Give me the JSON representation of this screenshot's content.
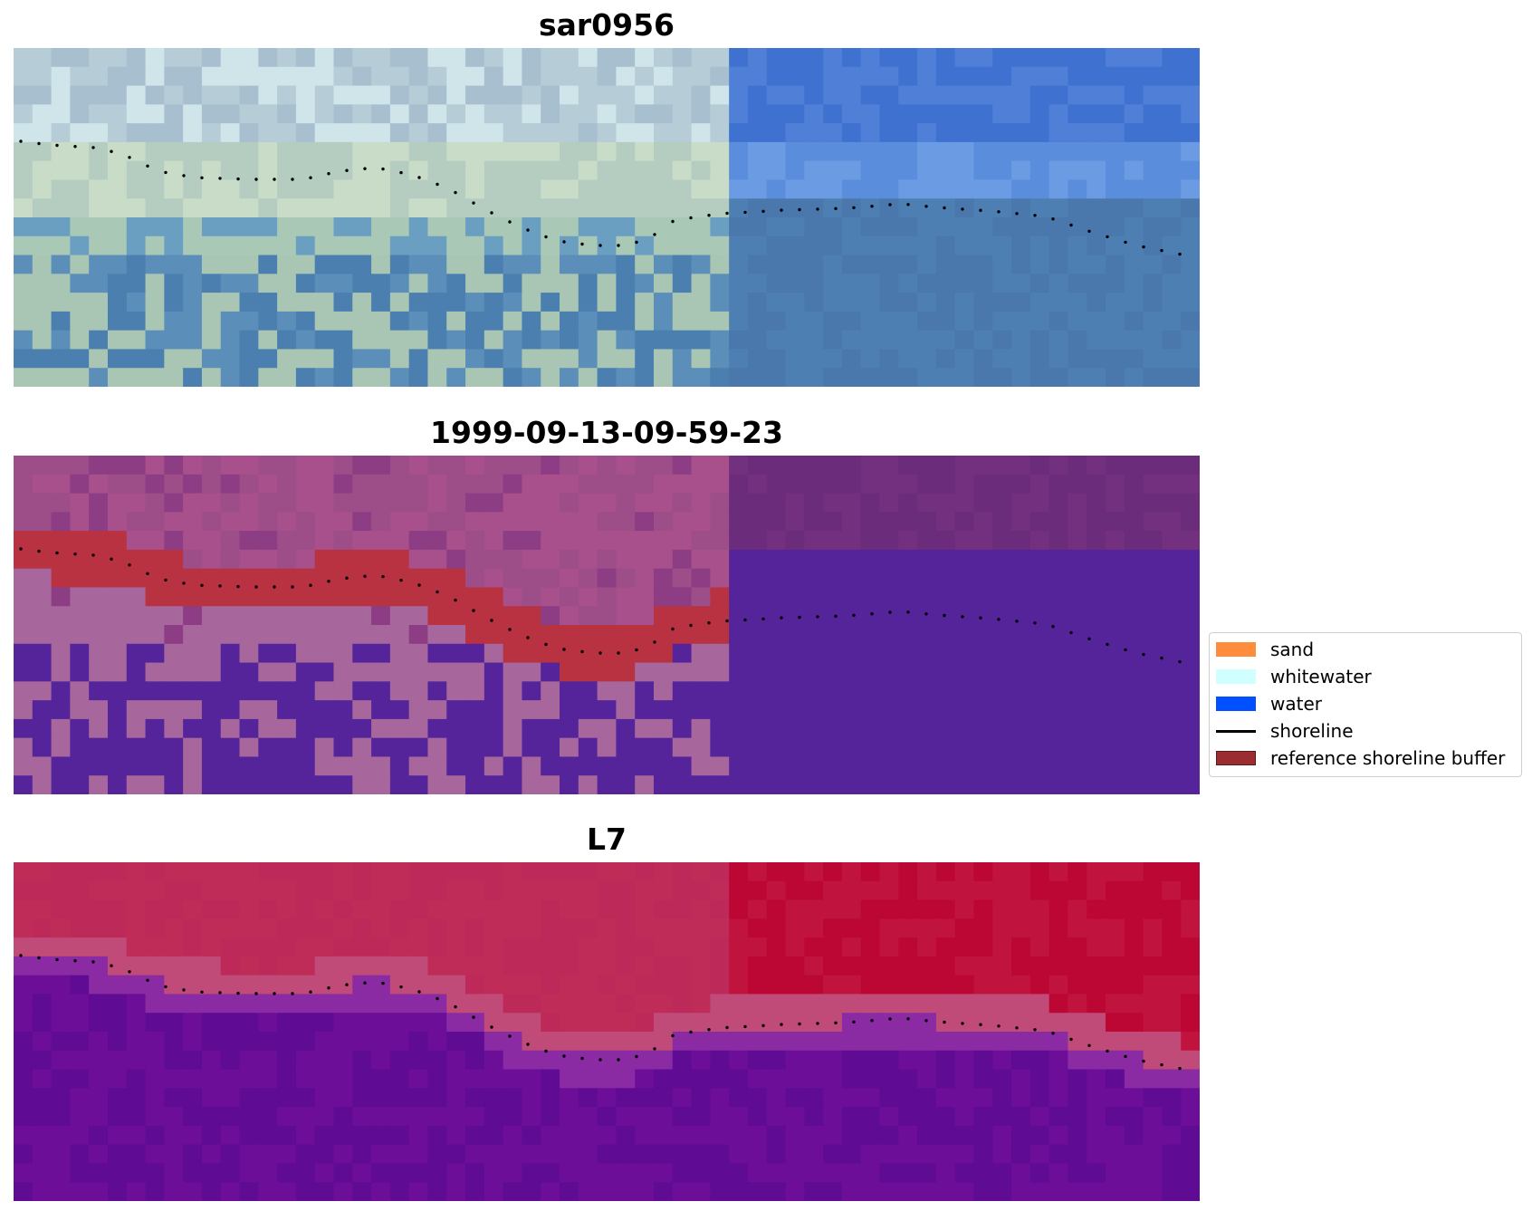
{
  "panels": [
    {
      "title": "sar0956",
      "style": "rgb"
    },
    {
      "title": "1999-09-13-09-59-23",
      "style": "classified"
    },
    {
      "title": "L7",
      "style": "ndwi"
    }
  ],
  "legend": {
    "items": [
      {
        "label": "sand",
        "color": "#ff8c3c",
        "kind": "patch"
      },
      {
        "label": "whitewater",
        "color": "#cfffff",
        "kind": "patch"
      },
      {
        "label": "water",
        "color": "#0050ff",
        "kind": "patch"
      },
      {
        "label": "shoreline",
        "color": "#000000",
        "kind": "line"
      },
      {
        "label": "reference shoreline buffer",
        "color": "#9b2d30",
        "kind": "patch"
      }
    ]
  },
  "colors": {
    "shoreline_dots": "#000000",
    "rgb_land": "#a9c6b4",
    "rgb_water": "#4a7fb4",
    "class_land": "#a7679c",
    "class_water": "#55249a",
    "class_buffer": "#b83242",
    "ndwi_land": "#bb2858",
    "ndwi_water": "#6a1196"
  }
}
